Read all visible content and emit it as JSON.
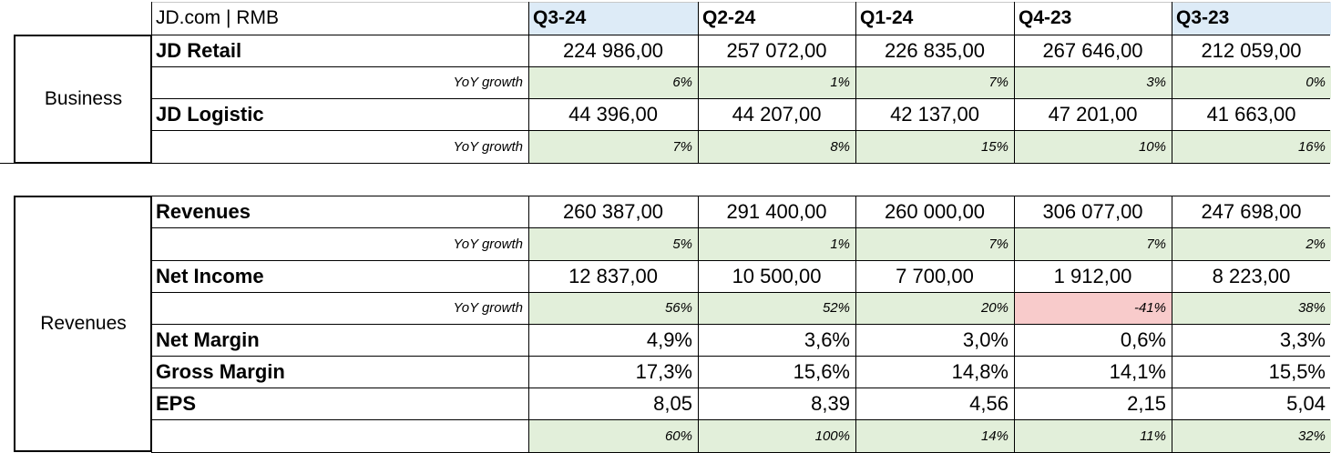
{
  "header": {
    "title": "JD.com | RMB",
    "quarters": [
      "Q3-24",
      "Q2-24",
      "Q1-24",
      "Q4-23",
      "Q3-23"
    ]
  },
  "business": {
    "section_label": "Business",
    "rows": [
      {
        "label": "JD Retail",
        "values": [
          "224 986,00",
          "257 072,00",
          "226 835,00",
          "267 646,00",
          "212 059,00"
        ]
      },
      {
        "label": "YoY growth",
        "values": [
          "6%",
          "1%",
          "7%",
          "3%",
          "0%"
        ]
      },
      {
        "label": "JD Logistic",
        "values": [
          "44 396,00",
          "44 207,00",
          "42 137,00",
          "47 201,00",
          "41 663,00"
        ]
      },
      {
        "label": "YoY growth",
        "values": [
          "7%",
          "8%",
          "15%",
          "10%",
          "16%"
        ]
      }
    ]
  },
  "revenues": {
    "section_label": "Revenues",
    "rows": [
      {
        "label": "Revenues",
        "values": [
          "260 387,00",
          "291 400,00",
          "260 000,00",
          "306 077,00",
          "247 698,00"
        ]
      },
      {
        "label": "YoY growth",
        "values": [
          "5%",
          "1%",
          "7%",
          "7%",
          "2%"
        ]
      },
      {
        "label": "Net Income",
        "values": [
          "12 837,00",
          "10 500,00",
          "7 700,00",
          "1 912,00",
          "8 223,00"
        ]
      },
      {
        "label": "YoY growth",
        "values": [
          "56%",
          "52%",
          "20%",
          "-41%",
          "38%"
        ]
      },
      {
        "label": "Net Margin",
        "values": [
          "4,9%",
          "3,6%",
          "3,0%",
          "0,6%",
          "3,3%"
        ]
      },
      {
        "label": "Gross Margin",
        "values": [
          "17,3%",
          "15,6%",
          "14,8%",
          "14,1%",
          "15,5%"
        ]
      },
      {
        "label": "EPS",
        "values": [
          "8,05",
          "8,39",
          "4,56",
          "2,15",
          "5,04"
        ]
      },
      {
        "label": "",
        "values": [
          "60%",
          "100%",
          "14%",
          "11%",
          "32%"
        ]
      }
    ]
  },
  "colors": {
    "header_blue": "#ddebf7",
    "growth_green": "#e2efda",
    "negative_red": "#f8cbcb"
  }
}
